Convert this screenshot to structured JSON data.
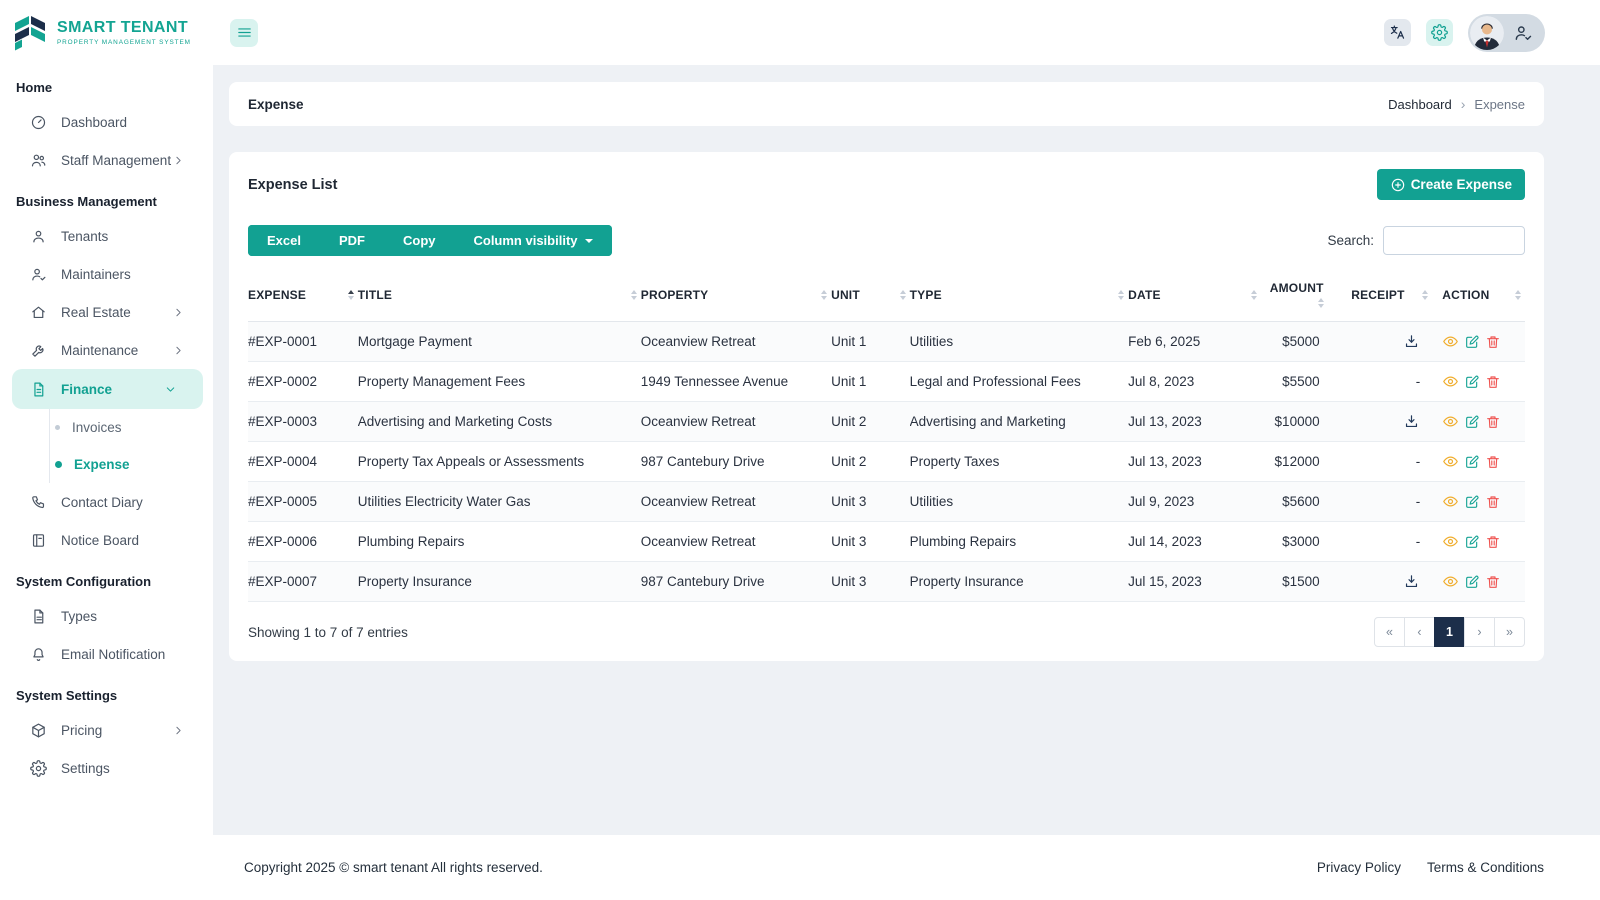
{
  "brand": {
    "name": "SMART TENANT",
    "tagline": "PROPERTY MANAGEMENT SYSTEM"
  },
  "topbar": {
    "icons": [
      "menu-icon",
      "translate-icon",
      "gear-icon",
      "avatar",
      "user-check-icon"
    ]
  },
  "sidebar": {
    "sections": [
      {
        "title": "Home",
        "items": [
          {
            "label": "Dashboard",
            "icon": "dashboard-icon"
          },
          {
            "label": "Staff Management",
            "icon": "staff-icon",
            "chevron": "right"
          }
        ]
      },
      {
        "title": "Business Management",
        "items": [
          {
            "label": "Tenants",
            "icon": "tenant-icon"
          },
          {
            "label": "Maintainers",
            "icon": "maintainer-icon"
          },
          {
            "label": "Real Estate",
            "icon": "real-estate-icon",
            "chevron": "right"
          },
          {
            "label": "Maintenance",
            "icon": "maintenance-icon",
            "chevron": "right"
          },
          {
            "label": "Finance",
            "icon": "finance-icon",
            "chevron": "down",
            "active": true,
            "children": [
              {
                "label": "Invoices"
              },
              {
                "label": "Expense",
                "active": true
              }
            ]
          },
          {
            "label": "Contact Diary",
            "icon": "contact-diary-icon"
          },
          {
            "label": "Notice Board",
            "icon": "notice-board-icon"
          }
        ]
      },
      {
        "title": "System Configuration",
        "items": [
          {
            "label": "Types",
            "icon": "types-icon"
          },
          {
            "label": "Email Notification",
            "icon": "bell-icon"
          }
        ]
      },
      {
        "title": "System Settings",
        "items": [
          {
            "label": "Pricing",
            "icon": "pricing-icon",
            "chevron": "right"
          },
          {
            "label": "Settings",
            "icon": "gear-icon"
          }
        ]
      }
    ]
  },
  "page": {
    "title": "Expense",
    "breadcrumb": [
      "Dashboard",
      "Expense"
    ]
  },
  "list_card": {
    "title": "Expense List",
    "create_button": "Create Expense",
    "export_buttons": [
      "Excel",
      "PDF",
      "Copy"
    ],
    "column_visibility_button": "Column visibility",
    "search_label": "Search:",
    "search_value": "",
    "table": {
      "columns": [
        {
          "label": "EXPENSE",
          "sort": "asc"
        },
        {
          "label": "TITLE"
        },
        {
          "label": "PROPERTY"
        },
        {
          "label": "UNIT"
        },
        {
          "label": "TYPE"
        },
        {
          "label": "DATE"
        },
        {
          "label": "AMOUNT",
          "align": "right"
        },
        {
          "label": "RECEIPT",
          "align": "center"
        },
        {
          "label": "ACTION"
        }
      ],
      "rows": [
        {
          "expense": "#EXP-0001",
          "title": "Mortgage Payment",
          "property": "Oceanview Retreat",
          "unit": "Unit 1",
          "type": "Utilities",
          "date": "Feb 6, 2025",
          "amount": "$5000",
          "receipt": "download"
        },
        {
          "expense": "#EXP-0002",
          "title": "Property Management Fees",
          "property": "1949 Tennessee Avenue",
          "unit": "Unit 1",
          "type": "Legal and Professional Fees",
          "date": "Jul 8, 2023",
          "amount": "$5500",
          "receipt": "-"
        },
        {
          "expense": "#EXP-0003",
          "title": "Advertising and Marketing Costs",
          "property": "Oceanview Retreat",
          "unit": "Unit 2",
          "type": "Advertising and Marketing",
          "date": "Jul 13, 2023",
          "amount": "$10000",
          "receipt": "download"
        },
        {
          "expense": "#EXP-0004",
          "title": "Property Tax Appeals or Assessments",
          "property": "987 Cantebury Drive",
          "unit": "Unit 2",
          "type": "Property Taxes",
          "date": "Jul 13, 2023",
          "amount": "$12000",
          "receipt": "-"
        },
        {
          "expense": "#EXP-0005",
          "title": "Utilities Electricity Water Gas",
          "property": "Oceanview Retreat",
          "unit": "Unit 3",
          "type": "Utilities",
          "date": "Jul 9, 2023",
          "amount": "$5600",
          "receipt": "-"
        },
        {
          "expense": "#EXP-0006",
          "title": "Plumbing Repairs",
          "property": "Oceanview Retreat",
          "unit": "Unit 3",
          "type": "Plumbing Repairs",
          "date": "Jul 14, 2023",
          "amount": "$3000",
          "receipt": "-"
        },
        {
          "expense": "#EXP-0007",
          "title": "Property Insurance",
          "property": "987 Cantebury Drive",
          "unit": "Unit 3",
          "type": "Property Insurance",
          "date": "Jul 15, 2023",
          "amount": "$1500",
          "receipt": "download"
        }
      ],
      "row_actions": [
        "view-icon",
        "edit-icon",
        "delete-icon"
      ]
    },
    "summary": "Showing 1 to 7 of 7 entries",
    "pagination": [
      {
        "label": "«"
      },
      {
        "label": "‹"
      },
      {
        "label": "1",
        "active": true
      },
      {
        "label": "›"
      },
      {
        "label": "»"
      }
    ]
  },
  "footer": {
    "copyright": "Copyright 2025 © smart tenant All rights reserved.",
    "links": [
      "Privacy Policy",
      "Terms & Conditions"
    ]
  },
  "colors": {
    "primary": "#12a192",
    "primary_light": "#d9f3ef",
    "navy": "#1c2e4a",
    "view": "#f0ad2d",
    "edit": "#16a394",
    "delete": "#ef5350",
    "background": "#eef1f5"
  }
}
